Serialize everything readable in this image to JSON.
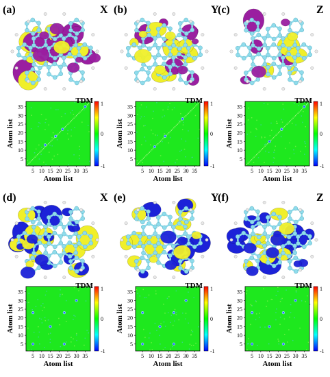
{
  "figure": {
    "rows": [
      {
        "molecules": [
          {
            "label": "(a)",
            "axis": "X"
          },
          {
            "label": "(b)",
            "axis": "Y"
          },
          {
            "label": "(c)",
            "axis": "Z"
          }
        ],
        "orbital_colors": {
          "positive": "#f0ef2a",
          "negative": "#9a1fa0"
        }
      },
      {
        "molecules": [
          {
            "label": "(d)",
            "axis": "X"
          },
          {
            "label": "(e)",
            "axis": "Y"
          },
          {
            "label": "(f)",
            "axis": "Z"
          }
        ],
        "orbital_colors": {
          "positive": "#f0ef2a",
          "negative": "#1c22d8"
        }
      }
    ],
    "atom_color": "#8fdcec",
    "hydrogen_color": "#e8e8e8"
  },
  "chart_data": [
    {
      "type": "heatmap",
      "title": "TDM",
      "xlabel": "Atom list",
      "ylabel": "Atom list",
      "x_ticks": [
        "5",
        "10",
        "15",
        "20",
        "25",
        "30",
        "35"
      ],
      "y_ticks": [
        "5",
        "10",
        "15",
        "20",
        "25",
        "30",
        "35"
      ],
      "xlim": [
        1,
        38
      ],
      "ylim": [
        1,
        38
      ],
      "colorbar": {
        "ticks": [
          "1",
          "0",
          "-1"
        ],
        "range": [
          -1,
          1
        ],
        "colors": [
          "#0000ff",
          "#00ffff",
          "#00ff00",
          "#ffff00",
          "#ff0000"
        ]
      },
      "background_value": 0,
      "features": "diagonal",
      "highlights": [
        [
          12,
          13
        ],
        [
          18,
          18
        ],
        [
          22,
          22
        ],
        [
          35,
          35
        ]
      ],
      "panel": "a"
    },
    {
      "type": "heatmap",
      "title": "TDM",
      "xlabel": "Atom list",
      "ylabel": "Atom list",
      "x_ticks": [
        "5",
        "10",
        "15",
        "20",
        "25",
        "30",
        "35"
      ],
      "y_ticks": [
        "5",
        "10",
        "15",
        "20",
        "25",
        "30",
        "35"
      ],
      "xlim": [
        1,
        38
      ],
      "ylim": [
        1,
        38
      ],
      "colorbar": {
        "ticks": [
          "1",
          "0",
          "-1"
        ],
        "range": [
          -1,
          1
        ],
        "colors": [
          "#0000ff",
          "#00ffff",
          "#00ff00",
          "#ffff00",
          "#ff0000"
        ]
      },
      "background_value": 0,
      "features": "diagonal",
      "highlights": [
        [
          18,
          18
        ],
        [
          28,
          28
        ],
        [
          12,
          12
        ]
      ],
      "panel": "b"
    },
    {
      "type": "heatmap",
      "title": "TDM",
      "xlabel": "Atom list",
      "ylabel": "Atom list",
      "x_ticks": [
        "5",
        "10",
        "15",
        "20",
        "25",
        "30",
        "35"
      ],
      "y_ticks": [
        "5",
        "10",
        "15",
        "20",
        "25",
        "30",
        "35"
      ],
      "xlim": [
        1,
        38
      ],
      "ylim": [
        1,
        38
      ],
      "colorbar": {
        "ticks": [
          "1",
          "0",
          "-1"
        ],
        "range": [
          -1,
          1
        ],
        "colors": [
          "#0000ff",
          "#00ffff",
          "#00ff00",
          "#ffff00",
          "#ff0000"
        ]
      },
      "background_value": 0,
      "features": "diagonal",
      "highlights": [
        [
          22,
          22
        ],
        [
          35,
          35
        ],
        [
          15,
          15
        ]
      ],
      "panel": "c"
    },
    {
      "type": "heatmap",
      "title": "TDM",
      "xlabel": "Atom list",
      "ylabel": "Atom list",
      "x_ticks": [
        "5",
        "10",
        "15",
        "20",
        "25",
        "30",
        "35"
      ],
      "y_ticks": [
        "5",
        "10",
        "15",
        "20",
        "25",
        "30",
        "35"
      ],
      "xlim": [
        1,
        38
      ],
      "ylim": [
        1,
        38
      ],
      "colorbar": {
        "ticks": [
          "1",
          "0",
          "-1"
        ],
        "range": [
          -1,
          1
        ],
        "colors": [
          "#0000ff",
          "#00ffff",
          "#00ff00",
          "#ffff00",
          "#ff0000"
        ]
      },
      "background_value": 0,
      "features": "scattered",
      "highlights": [
        [
          5,
          23
        ],
        [
          23,
          23
        ],
        [
          5,
          5
        ],
        [
          23,
          5
        ],
        [
          15,
          15
        ],
        [
          30,
          30
        ]
      ],
      "panel": "d"
    },
    {
      "type": "heatmap",
      "title": "TDM",
      "xlabel": "Atom list",
      "ylabel": "Atom list",
      "x_ticks": [
        "5",
        "10",
        "15",
        "20",
        "25",
        "30",
        "35"
      ],
      "y_ticks": [
        "5",
        "10",
        "15",
        "20",
        "25",
        "30",
        "35"
      ],
      "xlim": [
        1,
        38
      ],
      "ylim": [
        1,
        38
      ],
      "colorbar": {
        "ticks": [
          "1",
          "0",
          "-1"
        ],
        "range": [
          -1,
          1
        ],
        "colors": [
          "#0000ff",
          "#00ffff",
          "#00ff00",
          "#ffff00",
          "#ff0000"
        ]
      },
      "background_value": 0,
      "features": "scattered",
      "highlights": [
        [
          5,
          23
        ],
        [
          23,
          23
        ],
        [
          5,
          5
        ],
        [
          23,
          5
        ],
        [
          15,
          15
        ],
        [
          30,
          30
        ]
      ],
      "panel": "e"
    },
    {
      "type": "heatmap",
      "title": "TDM",
      "xlabel": "Atom list",
      "ylabel": "Atom list",
      "x_ticks": [
        "5",
        "10",
        "15",
        "20",
        "25",
        "30",
        "35"
      ],
      "y_ticks": [
        "5",
        "10",
        "15",
        "20",
        "25",
        "30",
        "35"
      ],
      "xlim": [
        1,
        38
      ],
      "ylim": [
        1,
        38
      ],
      "colorbar": {
        "ticks": [
          "1",
          "0",
          "-1"
        ],
        "range": [
          -1,
          1
        ],
        "colors": [
          "#0000ff",
          "#00ffff",
          "#00ff00",
          "#ffff00",
          "#ff0000"
        ]
      },
      "background_value": 0,
      "features": "scattered",
      "highlights": [
        [
          5,
          23
        ],
        [
          23,
          23
        ],
        [
          5,
          5
        ],
        [
          23,
          5
        ],
        [
          15,
          15
        ],
        [
          30,
          30
        ]
      ],
      "panel": "f"
    }
  ]
}
